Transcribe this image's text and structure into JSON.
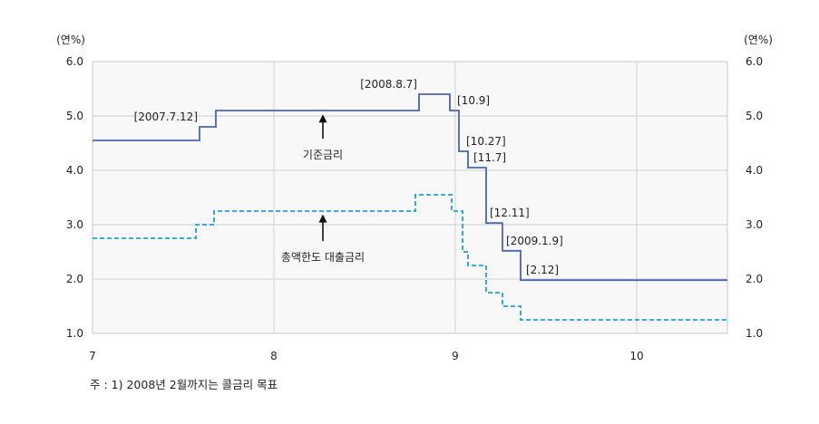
{
  "chart_data": {
    "type": "line",
    "y_unit_left": "(연%)",
    "y_unit_right": "(연%)",
    "ylim": [
      1.0,
      6.0
    ],
    "y_ticks": [
      "1.0",
      "2.0",
      "3.0",
      "4.0",
      "5.0",
      "6.0"
    ],
    "x_ticks": [
      {
        "label": "7",
        "x": 7
      },
      {
        "label": "8",
        "x": 8
      },
      {
        "label": "9",
        "x": 9
      },
      {
        "label": "10",
        "x": 10
      }
    ],
    "xlim": [
      7,
      10.5
    ],
    "grid": true,
    "series": [
      {
        "name": "기준금리",
        "style": "solid",
        "color": "#4a66b0",
        "points": [
          [
            7.0,
            4.55
          ],
          [
            7.59,
            4.55
          ],
          [
            7.59,
            4.8
          ],
          [
            7.68,
            4.8
          ],
          [
            7.68,
            5.1
          ],
          [
            8.8,
            5.1
          ],
          [
            8.8,
            5.4
          ],
          [
            8.97,
            5.4
          ],
          [
            8.97,
            5.1
          ],
          [
            9.02,
            5.1
          ],
          [
            9.02,
            4.35
          ],
          [
            9.07,
            4.35
          ],
          [
            9.07,
            4.05
          ],
          [
            9.17,
            4.05
          ],
          [
            9.17,
            3.03
          ],
          [
            9.26,
            3.03
          ],
          [
            9.26,
            2.52
          ],
          [
            9.36,
            2.52
          ],
          [
            9.36,
            1.98
          ],
          [
            10.5,
            1.98
          ]
        ]
      },
      {
        "name": "총액한도 대출금리",
        "style": "dashed",
        "color": "#1aa3d6",
        "points": [
          [
            7.0,
            2.75
          ],
          [
            7.57,
            2.75
          ],
          [
            7.57,
            3.0
          ],
          [
            7.67,
            3.0
          ],
          [
            7.67,
            3.25
          ],
          [
            8.78,
            3.25
          ],
          [
            8.78,
            3.55
          ],
          [
            8.98,
            3.55
          ],
          [
            8.98,
            3.25
          ],
          [
            9.04,
            3.25
          ],
          [
            9.04,
            2.5
          ],
          [
            9.07,
            2.5
          ],
          [
            9.07,
            2.25
          ],
          [
            9.17,
            2.25
          ],
          [
            9.17,
            1.75
          ],
          [
            9.26,
            1.75
          ],
          [
            9.26,
            1.5
          ],
          [
            9.36,
            1.5
          ],
          [
            9.36,
            1.25
          ],
          [
            10.5,
            1.25
          ]
        ]
      }
    ],
    "annotations": [
      {
        "text": "[2007.7.12]",
        "x": 7.59,
        "y": 4.8,
        "align": "end"
      },
      {
        "text": "[2008.8.7]",
        "x": 8.8,
        "y": 5.4,
        "align": "end"
      },
      {
        "text": "[10.9]",
        "x": 9.0,
        "y": 5.1,
        "align": "start"
      },
      {
        "text": "[10.27]",
        "x": 9.05,
        "y": 4.35,
        "align": "start"
      },
      {
        "text": "[11.7]",
        "x": 9.09,
        "y": 4.05,
        "align": "start"
      },
      {
        "text": "[12.11]",
        "x": 9.18,
        "y": 3.03,
        "align": "start"
      },
      {
        "text": "[2009.1.9]",
        "x": 9.27,
        "y": 2.52,
        "align": "start"
      },
      {
        "text": "[2.12]",
        "x": 9.38,
        "y": 1.98,
        "align": "start"
      }
    ],
    "arrows": [
      {
        "label": "기준금리",
        "x": 8.27,
        "y_tip": 5.03,
        "y_tail": 4.58,
        "label_y": 4.28
      },
      {
        "label": "총액한도 대출금리",
        "x": 8.27,
        "y_tip": 3.19,
        "y_tail": 2.7,
        "label_y": 2.4
      }
    ]
  },
  "footnote": "주 : 1) 2008년 2월까지는 콜금리 목표"
}
